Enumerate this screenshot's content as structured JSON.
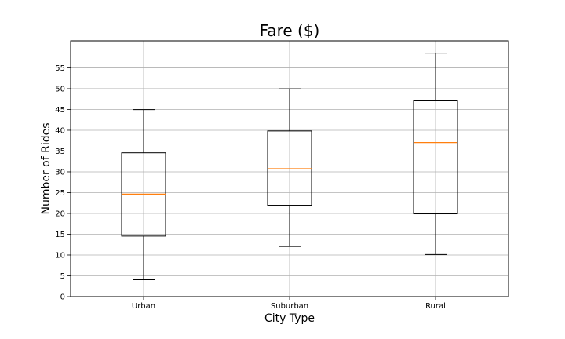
{
  "chart_data": {
    "type": "box",
    "title": "Fare ($)",
    "xlabel": "City Type",
    "ylabel": "Number of Rides",
    "categories": [
      "Urban",
      "Suburban",
      "Rural"
    ],
    "boxes": [
      {
        "name": "Urban",
        "whisker_low": 4.05,
        "q1": 14.55,
        "median": 24.64,
        "q3": 34.58,
        "whisker_high": 44.97
      },
      {
        "name": "Suburban",
        "whisker_low": 12.05,
        "q1": 21.97,
        "median": 30.75,
        "q3": 39.83,
        "whisker_high": 49.96
      },
      {
        "name": "Rural",
        "whisker_low": 10.11,
        "q1": 19.9,
        "median": 37.05,
        "q3": 47.07,
        "whisker_high": 58.55
      }
    ],
    "ylim": [
      0,
      61.5
    ],
    "yticks": [
      0,
      5,
      10,
      15,
      20,
      25,
      30,
      35,
      40,
      45,
      50,
      55
    ],
    "grid": true,
    "colors": {
      "box": "#000000",
      "median": "#ff7f0e",
      "grid": "#b0b0b0"
    }
  }
}
